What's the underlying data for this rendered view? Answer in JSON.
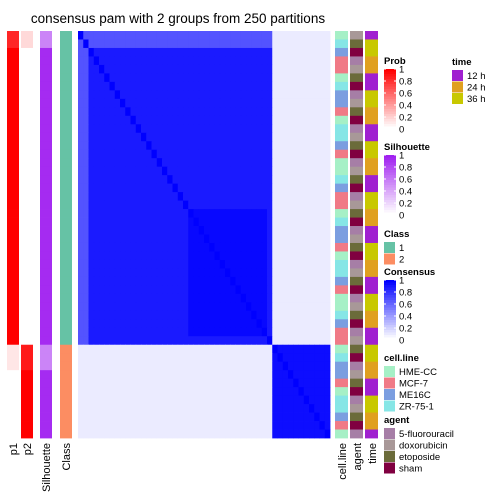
{
  "chart_data": {
    "type": "heatmap",
    "title": "consensus pam with 2 groups from 250 partitions",
    "n_samples": 48,
    "consensus_blocks": {
      "group1_count": 37,
      "group2_count": 11,
      "within_group1": 0.9,
      "within_group2": 0.95,
      "between_groups": 0.08
    },
    "columns": {
      "left": [
        "p1",
        "p2",
        "Silhouette",
        "Class"
      ],
      "right": [
        "cell.line",
        "agent",
        "time"
      ]
    },
    "legends": [
      {
        "title": "Prob",
        "type": "gradient",
        "ticks": [
          "1",
          "0.8",
          "0.6",
          "0.4",
          "0.2",
          "0"
        ],
        "colors": [
          "#ff0000",
          "#ffffff"
        ]
      },
      {
        "title": "Silhouette",
        "type": "gradient",
        "ticks": [
          "1",
          "0.8",
          "0.6",
          "0.4",
          "0.2",
          "0"
        ],
        "colors": [
          "#a020f0",
          "#ffffff"
        ]
      },
      {
        "title": "Class",
        "type": "discrete",
        "items": [
          {
            "label": "1",
            "color": "#66c2a5"
          },
          {
            "label": "2",
            "color": "#fc8d62"
          }
        ]
      },
      {
        "title": "Consensus",
        "type": "gradient",
        "ticks": [
          "1",
          "0.8",
          "0.6",
          "0.4",
          "0.2",
          "0"
        ],
        "colors": [
          "#0000ff",
          "#ffffff"
        ]
      },
      {
        "title": "cell.line",
        "type": "discrete",
        "items": [
          {
            "label": "HME-CC",
            "color": "#a6f0c6"
          },
          {
            "label": "MCF-7",
            "color": "#f07a86"
          },
          {
            "label": "ME16C",
            "color": "#7b9ee0"
          },
          {
            "label": "ZR-75-1",
            "color": "#86e6e6"
          }
        ]
      },
      {
        "title": "agent",
        "type": "discrete",
        "items": [
          {
            "label": "5-fluorouracil",
            "color": "#a67ea6"
          },
          {
            "label": "doxorubicin",
            "color": "#a89898"
          },
          {
            "label": "etoposide",
            "color": "#6b6b3a"
          },
          {
            "label": "sham",
            "color": "#800040"
          }
        ]
      },
      {
        "title": "time",
        "type": "discrete",
        "items": [
          {
            "label": "12 h",
            "color": "#a020d0"
          },
          {
            "label": "24 h",
            "color": "#e0a020"
          },
          {
            "label": "36 h",
            "color": "#c8c800"
          }
        ]
      }
    ]
  }
}
